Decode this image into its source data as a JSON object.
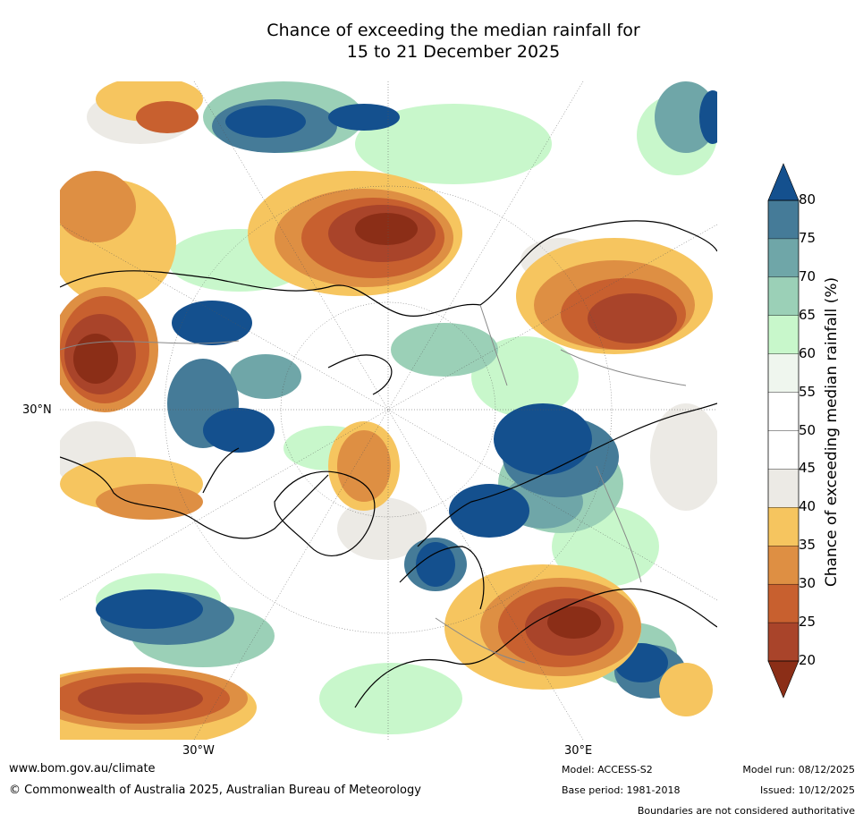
{
  "title": {
    "line1": "Chance of exceeding the median rainfall for",
    "line2": "15 to 21 December 2025"
  },
  "map": {
    "projection": "north-polar-stereographic",
    "lat_label": "30°N",
    "lon_labels": [
      "30°W",
      "30°E"
    ],
    "colors": {
      "c20": "#8B2E17",
      "c25": "#A9442A",
      "c30": "#C8602F",
      "c35": "#DE8F43",
      "c40": "#F6C55F",
      "c45": "#ECEAE5",
      "c55": "#EFF6EE",
      "c60": "#C8F7CB",
      "c65": "#9BD0B7",
      "c70": "#6FA6A8",
      "c75": "#457B98",
      "c80": "#14508E"
    }
  },
  "colorbar": {
    "title": "Chance of exceeding median rainfall (%)",
    "ticks": [
      "80",
      "75",
      "70",
      "65",
      "60",
      "55",
      "50",
      "45",
      "40",
      "35",
      "30",
      "25",
      "20"
    ],
    "bands": [
      "#457B98",
      "#6FA6A8",
      "#9BD0B7",
      "#C8F7CB",
      "#EFF6EE",
      "#FFFFFF",
      "#FFFFFF",
      "#ECEAE5",
      "#F6C55F",
      "#DE8F43",
      "#C8602F",
      "#A9442A"
    ],
    "over_color": "#14508E",
    "under_color": "#8B2E17"
  },
  "footer": {
    "url": "www.bom.gov.au/climate",
    "copyright": "© Commonwealth of Australia 2025, Australian Bureau of Meteorology",
    "model": "Model: ACCESS-S2",
    "base_period": "Base period: 1981-2018",
    "model_run": "Model run: 08/12/2025",
    "issued": "Issued: 10/12/2025",
    "disclaimer": "Boundaries are not considered authoritative"
  }
}
